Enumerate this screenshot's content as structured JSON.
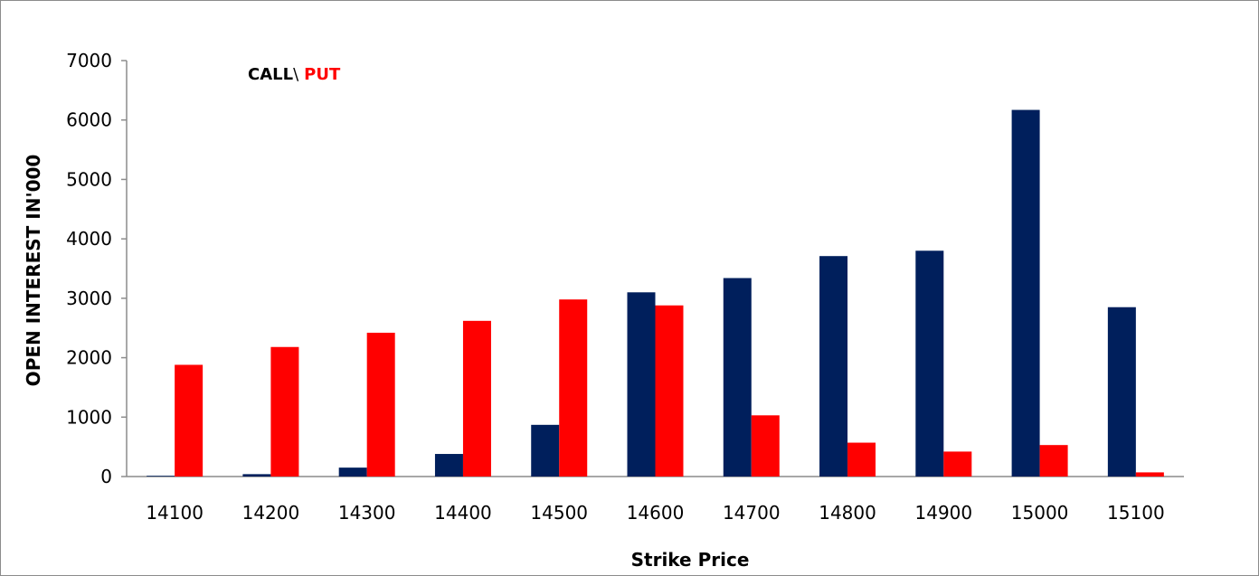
{
  "chart_data": {
    "type": "bar",
    "title": "",
    "xlabel": "Strike Price",
    "ylabel": "OPEN INTEREST IN'000",
    "ylim": [
      0,
      7000
    ],
    "yticks": [
      "0",
      "1000",
      "2000",
      "3000",
      "4000",
      "5000",
      "6000",
      "7000"
    ],
    "categories": [
      "14100",
      "14200",
      "14300",
      "14400",
      "14500",
      "14600",
      "14700",
      "14800",
      "14900",
      "15000",
      "15100"
    ],
    "series": [
      {
        "name": "CALL",
        "color": "#001f5c",
        "values": [
          10,
          40,
          150,
          380,
          870,
          3100,
          3340,
          3710,
          3800,
          6170,
          2850
        ]
      },
      {
        "name": "PUT",
        "color": "#ff0000",
        "values": [
          1880,
          2180,
          2420,
          2620,
          2980,
          2880,
          1030,
          570,
          420,
          530,
          70
        ]
      }
    ],
    "legend": {
      "position": "top-left",
      "separator": "\\",
      "labels": [
        "CALL",
        "PUT"
      ]
    },
    "grid": false
  }
}
